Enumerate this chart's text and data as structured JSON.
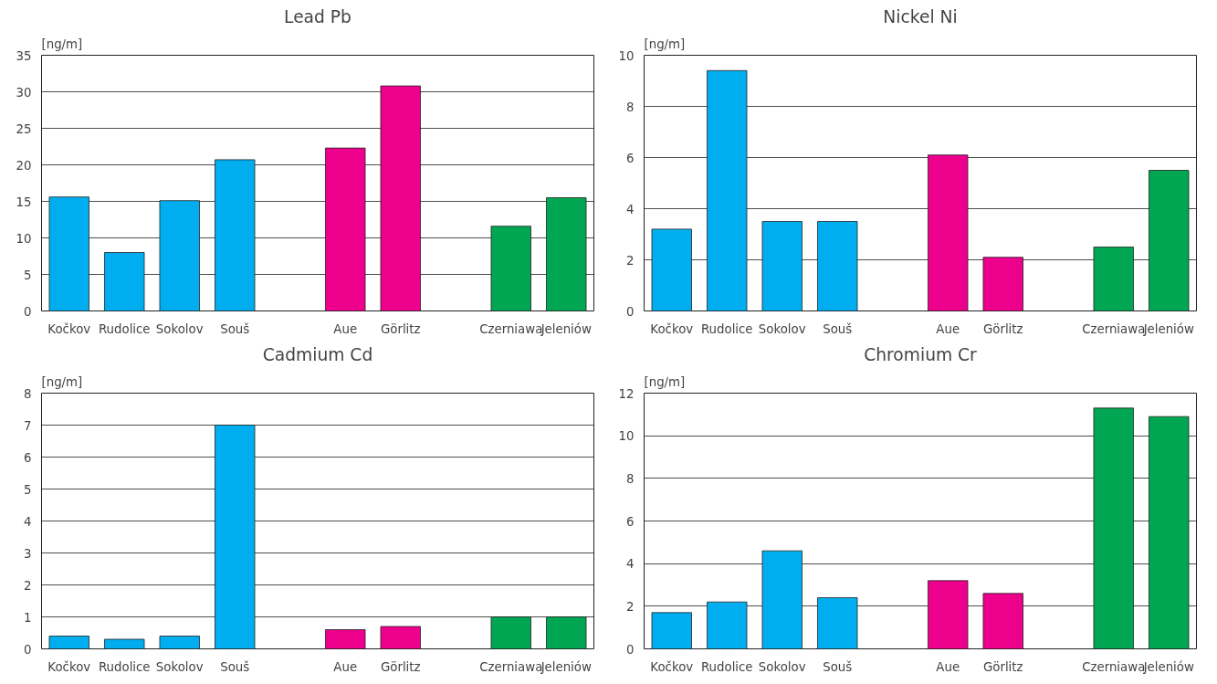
{
  "chart_data": [
    {
      "type": "bar",
      "title": "Lead Pb",
      "ylabel": "[ng/m]",
      "categories": [
        "Kočkov",
        "Rudolice",
        "Sokolov",
        "Souš",
        null,
        "Aue",
        "Görlitz",
        null,
        "Czerniawa",
        "Jeleniów"
      ],
      "values": [
        15.6,
        8.0,
        15.1,
        20.7,
        null,
        22.3,
        30.8,
        null,
        11.6,
        15.5
      ],
      "colors": [
        "#00aeef",
        "#00aeef",
        "#00aeef",
        "#00aeef",
        "#00aeef",
        "#ec008c",
        "#ec008c",
        "#ec008c",
        "#00a651",
        "#00a651"
      ],
      "ylim": [
        0,
        35
      ],
      "yticks": [
        0,
        5,
        10,
        15,
        20,
        25,
        30,
        35
      ],
      "grid": "y",
      "legend": false
    },
    {
      "type": "bar",
      "title": "Nickel Ni",
      "ylabel": "[ng/m]",
      "categories": [
        "Kočkov",
        "Rudolice",
        "Sokolov",
        "Souš",
        null,
        "Aue",
        "Görlitz",
        null,
        "Czerniawa",
        "Jeleniów"
      ],
      "values": [
        3.2,
        9.4,
        3.5,
        3.5,
        null,
        6.1,
        2.1,
        null,
        2.5,
        5.5
      ],
      "colors": [
        "#00aeef",
        "#00aeef",
        "#00aeef",
        "#00aeef",
        "#00aeef",
        "#ec008c",
        "#ec008c",
        "#ec008c",
        "#00a651",
        "#00a651"
      ],
      "ylim": [
        0,
        10
      ],
      "yticks": [
        0,
        2,
        4,
        6,
        8,
        10
      ],
      "grid": "y",
      "legend": false
    },
    {
      "type": "bar",
      "title": "Cadmium Cd",
      "ylabel": "[ng/m]",
      "categories": [
        "Kočkov",
        "Rudolice",
        "Sokolov",
        "Souš",
        null,
        "Aue",
        "Görlitz",
        null,
        "Czerniawa",
        "Jeleniów"
      ],
      "values": [
        0.4,
        0.3,
        0.4,
        7.0,
        null,
        0.6,
        0.7,
        null,
        1.0,
        1.0
      ],
      "colors": [
        "#00aeef",
        "#00aeef",
        "#00aeef",
        "#00aeef",
        "#00aeef",
        "#ec008c",
        "#ec008c",
        "#ec008c",
        "#00a651",
        "#00a651"
      ],
      "ylim": [
        0,
        8
      ],
      "yticks": [
        0,
        1,
        2,
        3,
        4,
        5,
        6,
        7,
        8
      ],
      "grid": "y",
      "legend": false
    },
    {
      "type": "bar",
      "title": "Chromium Cr",
      "ylabel": "[ng/m]",
      "categories": [
        "Kočkov",
        "Rudolice",
        "Sokolov",
        "Souš",
        null,
        "Aue",
        "Görlitz",
        null,
        "Czerniawa",
        "Jeleniów"
      ],
      "values": [
        1.7,
        2.2,
        4.6,
        2.4,
        null,
        3.2,
        2.6,
        null,
        11.3,
        10.9
      ],
      "colors": [
        "#00aeef",
        "#00aeef",
        "#00aeef",
        "#00aeef",
        "#00aeef",
        "#ec008c",
        "#ec008c",
        "#ec008c",
        "#00a651",
        "#00a651"
      ],
      "ylim": [
        0,
        12
      ],
      "yticks": [
        0,
        2,
        4,
        6,
        8,
        10,
        12
      ],
      "grid": "y",
      "legend": false
    }
  ]
}
